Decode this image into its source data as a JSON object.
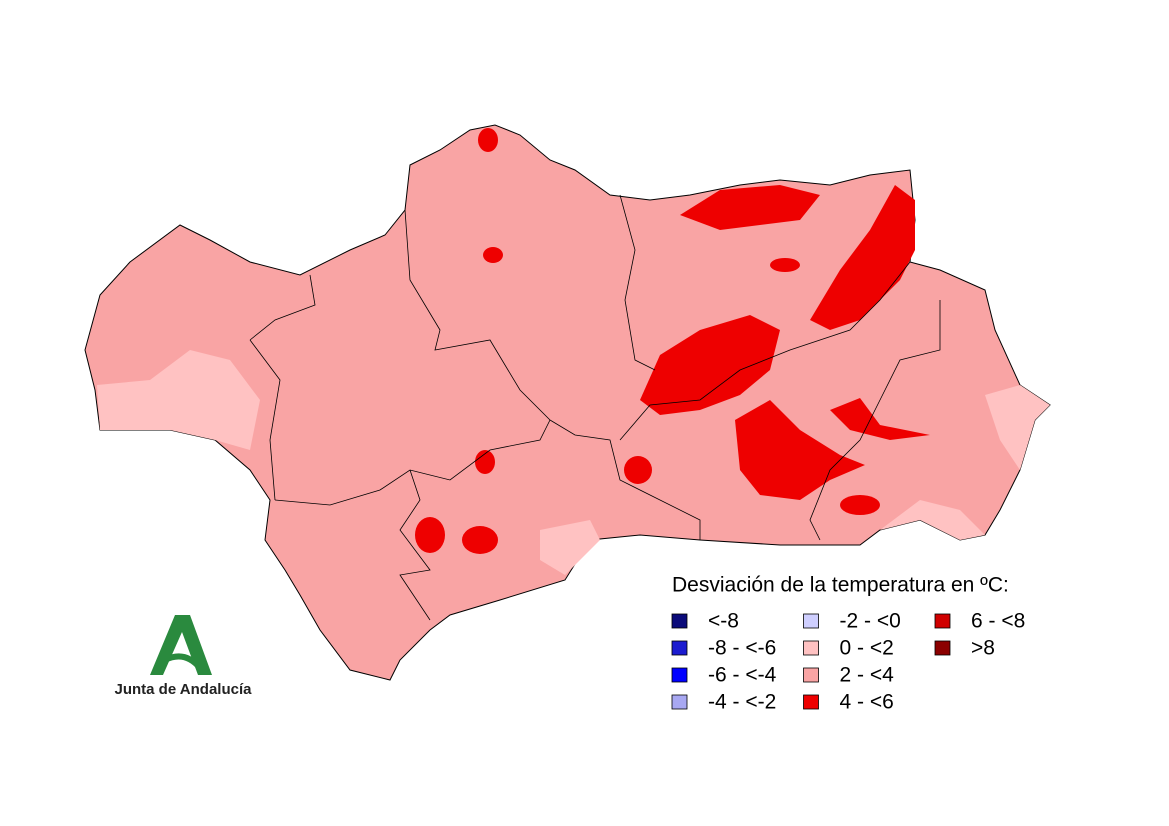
{
  "legend": {
    "title": "Desviación de la temperatura en ºC:",
    "columns": 3,
    "rows": 4,
    "items": [
      {
        "label": "<-8",
        "color": "#0b0b7a"
      },
      {
        "label": "-8 - <-6",
        "color": "#1c1cd0"
      },
      {
        "label": "-6 - <-4",
        "color": "#0000ff"
      },
      {
        "label": "-4 - <-2",
        "color": "#a8a8f2"
      },
      {
        "label": "-2 - <0",
        "color": "#cfcfff"
      },
      {
        "label": "0 - <2",
        "color": "#ffc2c2"
      },
      {
        "label": "2 - <4",
        "color": "#f9a4a4"
      },
      {
        "label": "4 - <6",
        "color": "#ee0000"
      },
      {
        "label": "6 - <8",
        "color": "#d00000"
      },
      {
        "label": ">8",
        "color": "#8b0000"
      }
    ]
  },
  "logo": {
    "text": "Junta de Andalucía"
  }
}
